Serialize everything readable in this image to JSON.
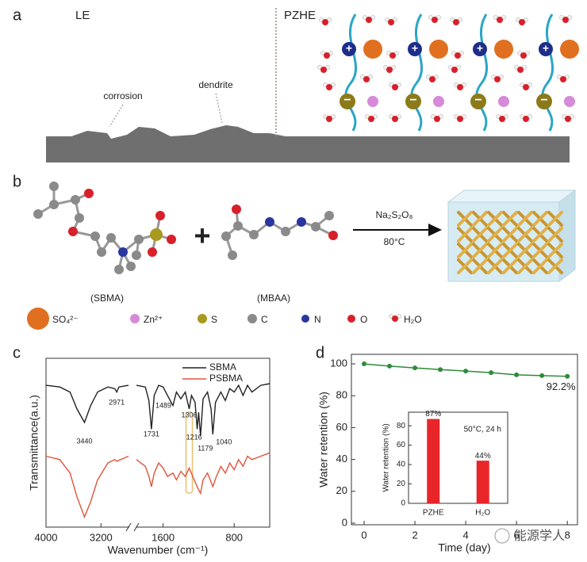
{
  "panel_labels": [
    "a",
    "b",
    "c",
    "d"
  ],
  "panel_a": {
    "left_label": "LE",
    "right_label": "PZHE",
    "annotations": [
      "corrosion",
      "dendrite"
    ]
  },
  "panel_b": {
    "reagent": "Na₂S₂O₈",
    "temperature": "80°C",
    "monomers": [
      "(SBMA)",
      "(MBAA)"
    ],
    "legend": [
      "SO₄²⁻",
      "Zn²⁺",
      "S",
      "C",
      "N",
      "O",
      "H₂O"
    ]
  },
  "chart_data": [
    {
      "type": "line",
      "x_label": "Wavenumber (cm⁻¹)",
      "y_label": "Transmittance(a.u.)",
      "xlim": [
        4000,
        400
      ],
      "xticks": [
        4000,
        3200,
        1600,
        800
      ],
      "axis_break": [
        2800,
        1900
      ],
      "ylim": [
        0,
        100
      ],
      "legend": "upper right",
      "series": [
        {
          "name": "SBMA",
          "color": "#222222",
          "x": [
            4000,
            3800,
            3650,
            3550,
            3440,
            3350,
            3250,
            3100,
            3000,
            2971,
            2940,
            2800,
            1900,
            1800,
            1760,
            1731,
            1700,
            1650,
            1600,
            1550,
            1489,
            1450,
            1400,
            1350,
            1306,
            1280,
            1240,
            1216,
            1200,
            1179,
            1150,
            1100,
            1060,
            1040,
            1010,
            950,
            900,
            850,
            800,
            750,
            700,
            650,
            600,
            500,
            400
          ],
          "values": [
            84,
            83,
            80,
            70,
            62,
            72,
            80,
            83,
            82,
            80,
            83,
            84,
            84,
            83,
            75,
            58,
            78,
            84,
            83,
            78,
            72,
            80,
            76,
            80,
            70,
            78,
            74,
            58,
            68,
            54,
            76,
            80,
            70,
            55,
            74,
            80,
            75,
            82,
            80,
            84,
            78,
            84,
            80,
            84,
            85
          ]
        },
        {
          "name": "PSBMA",
          "color": "#e0533a",
          "x": [
            4000,
            3800,
            3650,
            3550,
            3440,
            3350,
            3250,
            3100,
            3000,
            2971,
            2800,
            1900,
            1800,
            1760,
            1731,
            1700,
            1650,
            1600,
            1550,
            1489,
            1450,
            1400,
            1350,
            1306,
            1250,
            1200,
            1179,
            1150,
            1100,
            1040,
            1000,
            950,
            900,
            850,
            800,
            750,
            700,
            650,
            600,
            500,
            400
          ],
          "values": [
            42,
            40,
            32,
            18,
            6,
            15,
            28,
            38,
            40,
            39,
            42,
            40,
            36,
            30,
            24,
            32,
            38,
            35,
            30,
            32,
            28,
            33,
            30,
            35,
            28,
            22,
            20,
            28,
            32,
            24,
            30,
            36,
            32,
            38,
            34,
            40,
            36,
            42,
            40,
            42,
            44
          ]
        }
      ],
      "peaks": [
        3440,
        2971,
        1731,
        1489,
        1306,
        1216,
        1179,
        1040
      ]
    },
    {
      "type": "line",
      "x_label": "Time (day)",
      "y_label": "Water retention (%)",
      "x": [
        0,
        1,
        2,
        3,
        4,
        5,
        6,
        7,
        8
      ],
      "values": [
        100,
        98.6,
        97.5,
        96.4,
        95.5,
        94.5,
        93.1,
        92.6,
        92.2
      ],
      "color": "#2e8b3a",
      "xlim": [
        -0.5,
        8.4
      ],
      "xticks": [
        0,
        2,
        4,
        6,
        8
      ],
      "ylim": [
        -1,
        106
      ],
      "yticks": [
        0,
        20,
        40,
        60,
        80,
        100
      ],
      "annotation": "92.2%",
      "inset": {
        "type": "bar",
        "y_label": "Water retention (%)",
        "categories": [
          "PZHE",
          "H₂O"
        ],
        "values": [
          87,
          44
        ],
        "value_labels": [
          "87%",
          "44%"
        ],
        "color": "#e8262a",
        "ylim": [
          0,
          94
        ],
        "yticks": [
          0,
          20,
          40,
          60,
          80
        ],
        "annotation": "50°C, 24 h"
      }
    }
  ],
  "watermark": "能源学人"
}
